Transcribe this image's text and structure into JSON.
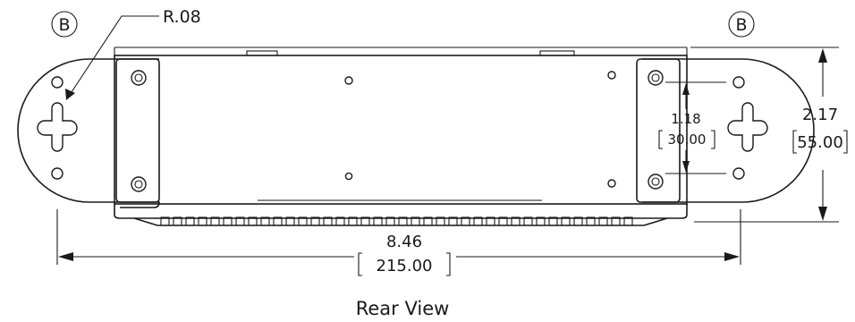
{
  "drawing": {
    "view_caption": "Rear View",
    "detail_marker_left": "B",
    "detail_marker_right": "B",
    "radius_callout": "R.08",
    "overall_width": {
      "inch": "8.46",
      "mm": "215.00"
    },
    "overall_height": {
      "inch": "2.17",
      "mm": "55.00"
    },
    "hole_spacing": {
      "inch": "1.18",
      "mm": "30.00"
    }
  }
}
